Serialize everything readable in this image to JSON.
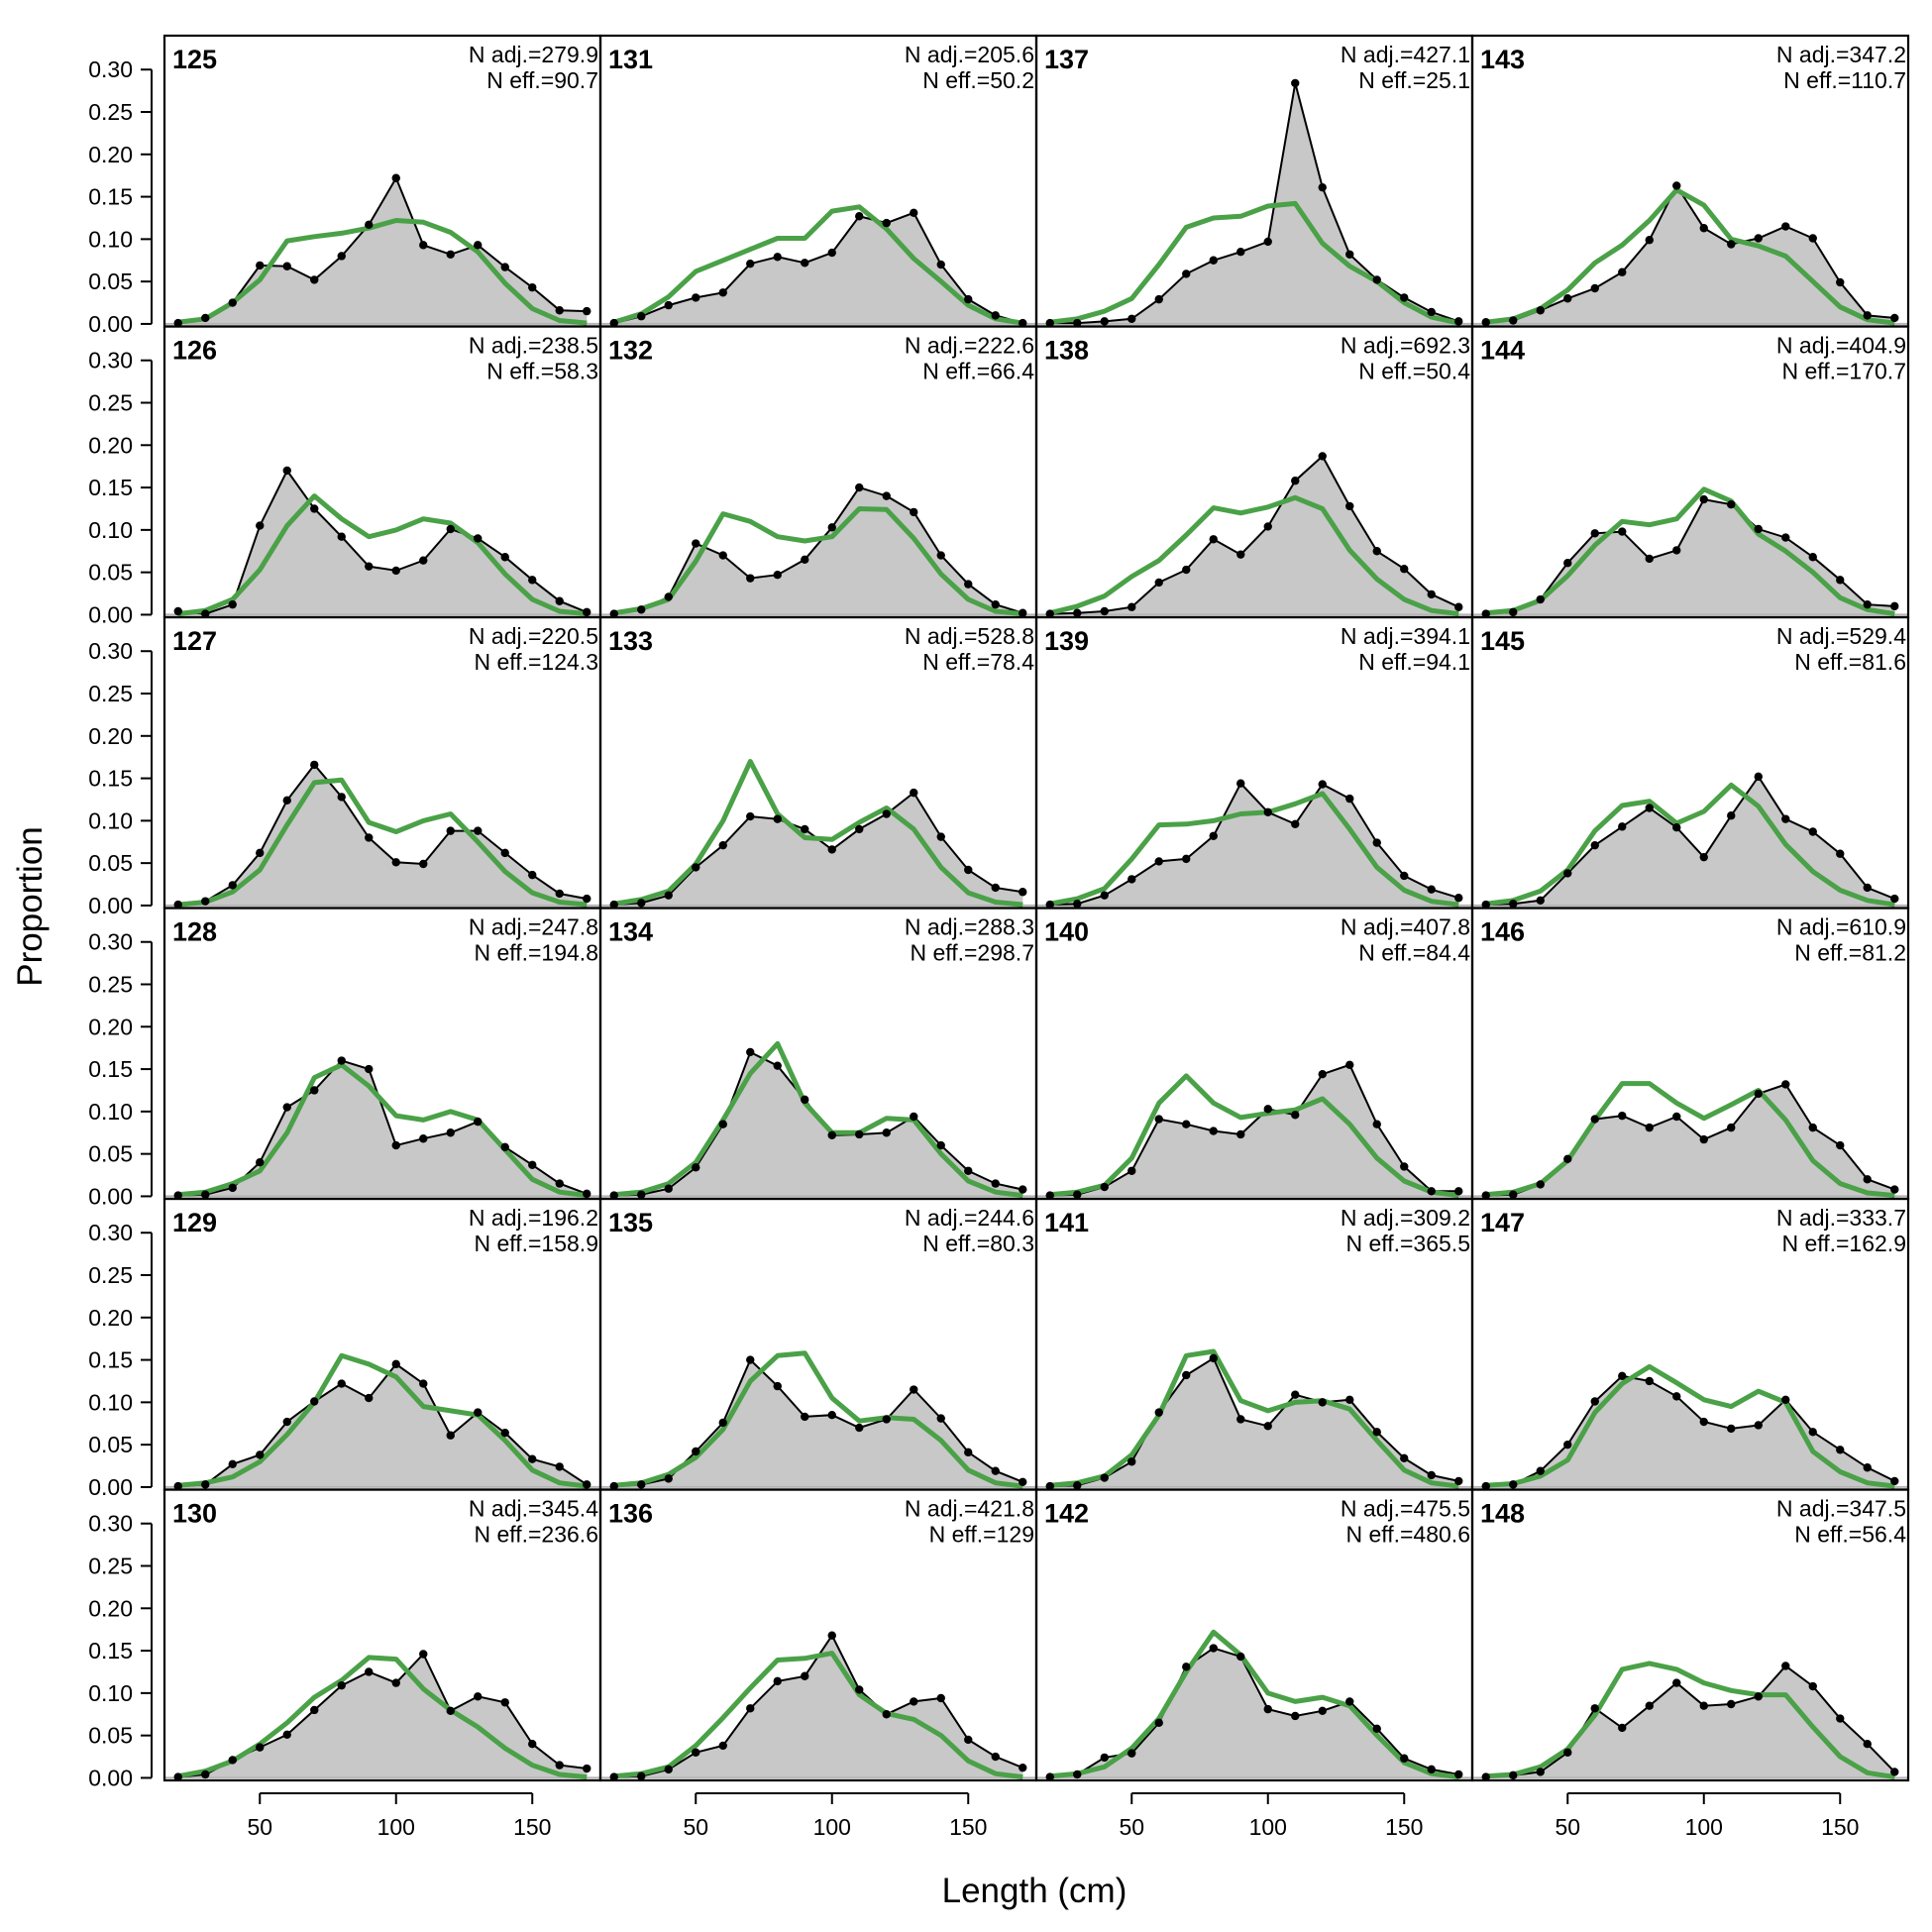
{
  "chart_data": {
    "type": "area",
    "xlabel": "Length (cm)",
    "ylabel": "Proportion",
    "xlim": [
      15,
      175
    ],
    "ylim": [
      -0.003,
      0.34
    ],
    "xticks": [
      50,
      100,
      150
    ],
    "yticks": [
      0.0,
      0.05,
      0.1,
      0.15,
      0.2,
      0.25,
      0.3
    ],
    "ytick_labels": [
      "0.00",
      "0.05",
      "0.10",
      "0.15",
      "0.20",
      "0.25",
      "0.30"
    ],
    "grid": false,
    "layout": {
      "rows": 6,
      "cols": 4,
      "order": "column-major"
    },
    "colors": {
      "observed_fill": "#c8c8c8",
      "observed_line": "#000000",
      "expected_line": "#4aa147",
      "zero_line": "#b4b4b4"
    },
    "x": [
      20,
      30,
      40,
      50,
      60,
      70,
      80,
      90,
      100,
      110,
      120,
      130,
      140,
      150,
      160,
      170
    ],
    "panels": [
      {
        "label": "125",
        "n_adj": "N adj.=279.9",
        "n_eff": "N eff.=90.7",
        "observed": [
          0.001,
          0.007,
          0.025,
          0.069,
          0.068,
          0.052,
          0.08,
          0.117,
          0.172,
          0.093,
          0.082,
          0.093,
          0.067,
          0.043,
          0.016,
          0.015
        ],
        "expected": [
          0.002,
          0.006,
          0.025,
          0.052,
          0.098,
          0.103,
          0.107,
          0.113,
          0.122,
          0.12,
          0.108,
          0.085,
          0.048,
          0.018,
          0.004,
          0.001
        ]
      },
      {
        "label": "126",
        "n_adj": "N adj.=238.5",
        "n_eff": "N eff.=58.3",
        "observed": [
          0.004,
          0.001,
          0.012,
          0.105,
          0.17,
          0.125,
          0.092,
          0.057,
          0.052,
          0.064,
          0.101,
          0.09,
          0.068,
          0.041,
          0.016,
          0.003
        ],
        "expected": [
          0.001,
          0.005,
          0.018,
          0.053,
          0.105,
          0.14,
          0.113,
          0.092,
          0.1,
          0.113,
          0.108,
          0.085,
          0.048,
          0.018,
          0.004,
          0.001
        ]
      },
      {
        "label": "127",
        "n_adj": "N adj.=220.5",
        "n_eff": "N eff.=124.3",
        "observed": [
          0.001,
          0.005,
          0.024,
          0.062,
          0.124,
          0.166,
          0.128,
          0.08,
          0.051,
          0.049,
          0.088,
          0.088,
          0.062,
          0.036,
          0.014,
          0.008
        ],
        "expected": [
          0.001,
          0.004,
          0.016,
          0.042,
          0.095,
          0.145,
          0.148,
          0.098,
          0.087,
          0.1,
          0.108,
          0.075,
          0.04,
          0.015,
          0.004,
          0.001
        ]
      },
      {
        "label": "128",
        "n_adj": "N adj.=247.8",
        "n_eff": "N eff.=194.8",
        "observed": [
          0.001,
          0.002,
          0.01,
          0.04,
          0.105,
          0.125,
          0.16,
          0.15,
          0.06,
          0.068,
          0.075,
          0.088,
          0.058,
          0.037,
          0.015,
          0.003
        ],
        "expected": [
          0.002,
          0.005,
          0.015,
          0.03,
          0.075,
          0.14,
          0.155,
          0.13,
          0.095,
          0.09,
          0.1,
          0.09,
          0.055,
          0.02,
          0.005,
          0.001
        ]
      },
      {
        "label": "129",
        "n_adj": "N adj.=196.2",
        "n_eff": "N eff.=158.9",
        "observed": [
          0.001,
          0.003,
          0.027,
          0.038,
          0.077,
          0.101,
          0.122,
          0.105,
          0.145,
          0.122,
          0.061,
          0.088,
          0.064,
          0.033,
          0.024,
          0.003
        ],
        "expected": [
          0.002,
          0.005,
          0.012,
          0.03,
          0.062,
          0.1,
          0.155,
          0.145,
          0.13,
          0.095,
          0.09,
          0.085,
          0.055,
          0.02,
          0.005,
          0.001
        ]
      },
      {
        "label": "130",
        "n_adj": "N adj.=345.4",
        "n_eff": "N eff.=236.6",
        "observed": [
          0.001,
          0.004,
          0.021,
          0.036,
          0.051,
          0.08,
          0.109,
          0.125,
          0.112,
          0.146,
          0.079,
          0.096,
          0.089,
          0.04,
          0.015,
          0.011
        ],
        "expected": [
          0.002,
          0.008,
          0.02,
          0.04,
          0.065,
          0.095,
          0.115,
          0.142,
          0.14,
          0.105,
          0.08,
          0.06,
          0.035,
          0.015,
          0.004,
          0.001
        ]
      },
      {
        "label": "131",
        "n_adj": "N adj.=205.6",
        "n_eff": "N eff.=50.2",
        "observed": [
          0.001,
          0.009,
          0.022,
          0.031,
          0.037,
          0.071,
          0.079,
          0.072,
          0.084,
          0.127,
          0.119,
          0.131,
          0.07,
          0.029,
          0.01,
          0.001
        ],
        "expected": [
          0.002,
          0.012,
          0.032,
          0.062,
          0.075,
          0.088,
          0.101,
          0.101,
          0.133,
          0.138,
          0.112,
          0.077,
          0.05,
          0.022,
          0.006,
          0.001
        ]
      },
      {
        "label": "132",
        "n_adj": "N adj.=222.6",
        "n_eff": "N eff.=66.4",
        "observed": [
          0.001,
          0.006,
          0.021,
          0.084,
          0.07,
          0.043,
          0.047,
          0.065,
          0.103,
          0.15,
          0.14,
          0.121,
          0.07,
          0.036,
          0.012,
          0.002
        ],
        "expected": [
          0.002,
          0.007,
          0.018,
          0.063,
          0.119,
          0.11,
          0.092,
          0.087,
          0.092,
          0.125,
          0.124,
          0.09,
          0.048,
          0.018,
          0.004,
          0.001
        ]
      },
      {
        "label": "133",
        "n_adj": "N adj.=528.8",
        "n_eff": "N eff.=78.4",
        "observed": [
          0.001,
          0.003,
          0.012,
          0.045,
          0.071,
          0.105,
          0.102,
          0.09,
          0.066,
          0.09,
          0.108,
          0.133,
          0.081,
          0.042,
          0.021,
          0.016
        ],
        "expected": [
          0.002,
          0.007,
          0.017,
          0.049,
          0.1,
          0.17,
          0.108,
          0.08,
          0.078,
          0.098,
          0.115,
          0.09,
          0.045,
          0.015,
          0.004,
          0.001
        ]
      },
      {
        "label": "134",
        "n_adj": "N adj.=288.3",
        "n_eff": "N eff.=298.7",
        "observed": [
          0.001,
          0.002,
          0.009,
          0.034,
          0.085,
          0.17,
          0.154,
          0.114,
          0.072,
          0.073,
          0.075,
          0.094,
          0.06,
          0.03,
          0.015,
          0.008
        ],
        "expected": [
          0.002,
          0.005,
          0.015,
          0.04,
          0.09,
          0.145,
          0.18,
          0.11,
          0.075,
          0.075,
          0.092,
          0.09,
          0.05,
          0.018,
          0.005,
          0.001
        ]
      },
      {
        "label": "135",
        "n_adj": "N adj.=244.6",
        "n_eff": "N eff.=80.3",
        "observed": [
          0.001,
          0.003,
          0.01,
          0.042,
          0.076,
          0.15,
          0.119,
          0.083,
          0.085,
          0.07,
          0.08,
          0.115,
          0.081,
          0.041,
          0.019,
          0.006
        ],
        "expected": [
          0.002,
          0.005,
          0.015,
          0.035,
          0.068,
          0.125,
          0.155,
          0.158,
          0.105,
          0.078,
          0.082,
          0.08,
          0.055,
          0.02,
          0.005,
          0.001
        ]
      },
      {
        "label": "136",
        "n_adj": "N adj.=421.8",
        "n_eff": "N eff.=129",
        "observed": [
          0.001,
          0.002,
          0.01,
          0.03,
          0.038,
          0.082,
          0.114,
          0.12,
          0.168,
          0.104,
          0.075,
          0.09,
          0.094,
          0.045,
          0.025,
          0.012
        ],
        "expected": [
          0.002,
          0.005,
          0.013,
          0.038,
          0.071,
          0.106,
          0.139,
          0.141,
          0.147,
          0.098,
          0.076,
          0.069,
          0.05,
          0.02,
          0.005,
          0.001
        ]
      },
      {
        "label": "137",
        "n_adj": "N adj.=427.1",
        "n_eff": "N eff.=25.1",
        "observed": [
          0.001,
          0.001,
          0.003,
          0.006,
          0.029,
          0.059,
          0.075,
          0.085,
          0.097,
          0.284,
          0.161,
          0.082,
          0.052,
          0.031,
          0.014,
          0.003
        ],
        "expected": [
          0.002,
          0.006,
          0.015,
          0.03,
          0.07,
          0.114,
          0.125,
          0.127,
          0.139,
          0.142,
          0.095,
          0.068,
          0.05,
          0.025,
          0.008,
          0.001
        ]
      },
      {
        "label": "138",
        "n_adj": "N adj.=692.3",
        "n_eff": "N eff.=50.4",
        "observed": [
          0.001,
          0.002,
          0.004,
          0.009,
          0.038,
          0.053,
          0.089,
          0.071,
          0.104,
          0.158,
          0.187,
          0.128,
          0.075,
          0.054,
          0.024,
          0.009
        ],
        "expected": [
          0.002,
          0.01,
          0.022,
          0.045,
          0.064,
          0.094,
          0.126,
          0.12,
          0.127,
          0.138,
          0.125,
          0.076,
          0.042,
          0.018,
          0.005,
          0.001
        ]
      },
      {
        "label": "139",
        "n_adj": "N adj.=394.1",
        "n_eff": "N eff.=94.1",
        "observed": [
          0.001,
          0.002,
          0.012,
          0.031,
          0.052,
          0.055,
          0.082,
          0.144,
          0.11,
          0.096,
          0.143,
          0.126,
          0.074,
          0.035,
          0.019,
          0.009
        ],
        "expected": [
          0.002,
          0.008,
          0.02,
          0.055,
          0.095,
          0.096,
          0.1,
          0.108,
          0.11,
          0.12,
          0.132,
          0.09,
          0.045,
          0.018,
          0.005,
          0.001
        ]
      },
      {
        "label": "140",
        "n_adj": "N adj.=407.8",
        "n_eff": "N eff.=84.4",
        "observed": [
          0.001,
          0.002,
          0.011,
          0.03,
          0.091,
          0.085,
          0.077,
          0.073,
          0.103,
          0.096,
          0.144,
          0.155,
          0.085,
          0.035,
          0.006,
          0.006
        ],
        "expected": [
          0.002,
          0.005,
          0.013,
          0.045,
          0.11,
          0.142,
          0.11,
          0.093,
          0.098,
          0.102,
          0.115,
          0.085,
          0.045,
          0.018,
          0.005,
          0.001
        ]
      },
      {
        "label": "141",
        "n_adj": "N adj.=309.2",
        "n_eff": "N eff.=365.5",
        "observed": [
          0.001,
          0.002,
          0.011,
          0.03,
          0.088,
          0.132,
          0.152,
          0.08,
          0.072,
          0.109,
          0.1,
          0.103,
          0.065,
          0.034,
          0.014,
          0.007
        ],
        "expected": [
          0.002,
          0.005,
          0.013,
          0.038,
          0.085,
          0.155,
          0.16,
          0.102,
          0.09,
          0.1,
          0.102,
          0.092,
          0.055,
          0.02,
          0.005,
          0.001
        ]
      },
      {
        "label": "142",
        "n_adj": "N adj.=475.5",
        "n_eff": "N eff.=480.6",
        "observed": [
          0.001,
          0.004,
          0.024,
          0.029,
          0.065,
          0.131,
          0.153,
          0.143,
          0.081,
          0.073,
          0.079,
          0.09,
          0.058,
          0.023,
          0.01,
          0.004
        ],
        "expected": [
          0.002,
          0.005,
          0.013,
          0.035,
          0.07,
          0.125,
          0.172,
          0.145,
          0.1,
          0.09,
          0.095,
          0.085,
          0.05,
          0.018,
          0.005,
          0.001
        ]
      },
      {
        "label": "143",
        "n_adj": "N adj.=347.2",
        "n_eff": "N eff.=110.7",
        "observed": [
          0.002,
          0.004,
          0.016,
          0.03,
          0.042,
          0.061,
          0.099,
          0.163,
          0.113,
          0.094,
          0.101,
          0.115,
          0.101,
          0.049,
          0.01,
          0.007
        ],
        "expected": [
          0.002,
          0.006,
          0.018,
          0.04,
          0.072,
          0.093,
          0.122,
          0.158,
          0.14,
          0.1,
          0.092,
          0.08,
          0.05,
          0.02,
          0.005,
          0.001
        ]
      },
      {
        "label": "144",
        "n_adj": "N adj.=404.9",
        "n_eff": "N eff.=170.7",
        "observed": [
          0.001,
          0.003,
          0.018,
          0.061,
          0.096,
          0.098,
          0.066,
          0.076,
          0.136,
          0.13,
          0.101,
          0.091,
          0.068,
          0.041,
          0.012,
          0.01
        ],
        "expected": [
          0.002,
          0.005,
          0.017,
          0.046,
          0.082,
          0.11,
          0.106,
          0.113,
          0.148,
          0.134,
          0.095,
          0.075,
          0.05,
          0.02,
          0.006,
          0.001
        ]
      },
      {
        "label": "145",
        "n_adj": "N adj.=529.4",
        "n_eff": "N eff.=81.6",
        "observed": [
          0.001,
          0.002,
          0.006,
          0.038,
          0.071,
          0.093,
          0.115,
          0.092,
          0.057,
          0.106,
          0.152,
          0.102,
          0.087,
          0.061,
          0.021,
          0.008
        ],
        "expected": [
          0.002,
          0.006,
          0.017,
          0.042,
          0.088,
          0.118,
          0.123,
          0.097,
          0.111,
          0.142,
          0.117,
          0.072,
          0.04,
          0.018,
          0.006,
          0.001
        ]
      },
      {
        "label": "146",
        "n_adj": "N adj.=610.9",
        "n_eff": "N eff.=81.2",
        "observed": [
          0.001,
          0.002,
          0.014,
          0.044,
          0.091,
          0.095,
          0.081,
          0.094,
          0.067,
          0.081,
          0.121,
          0.132,
          0.081,
          0.06,
          0.02,
          0.008
        ],
        "expected": [
          0.002,
          0.005,
          0.015,
          0.042,
          0.09,
          0.133,
          0.133,
          0.11,
          0.092,
          0.108,
          0.125,
          0.09,
          0.042,
          0.015,
          0.004,
          0.001
        ]
      },
      {
        "label": "147",
        "n_adj": "N adj.=333.7",
        "n_eff": "N eff.=162.9",
        "observed": [
          0.001,
          0.003,
          0.019,
          0.05,
          0.101,
          0.131,
          0.125,
          0.107,
          0.077,
          0.069,
          0.073,
          0.103,
          0.065,
          0.044,
          0.023,
          0.007
        ],
        "expected": [
          0.002,
          0.004,
          0.013,
          0.032,
          0.088,
          0.122,
          0.142,
          0.123,
          0.103,
          0.095,
          0.113,
          0.1,
          0.042,
          0.018,
          0.005,
          0.001
        ]
      },
      {
        "label": "148",
        "n_adj": "N adj.=347.5",
        "n_eff": "N eff.=56.4",
        "observed": [
          0.001,
          0.003,
          0.007,
          0.03,
          0.082,
          0.059,
          0.085,
          0.112,
          0.085,
          0.087,
          0.096,
          0.132,
          0.108,
          0.07,
          0.04,
          0.007
        ],
        "expected": [
          0.002,
          0.004,
          0.013,
          0.034,
          0.074,
          0.128,
          0.135,
          0.128,
          0.112,
          0.103,
          0.098,
          0.098,
          0.06,
          0.025,
          0.006,
          0.001
        ]
      }
    ]
  }
}
